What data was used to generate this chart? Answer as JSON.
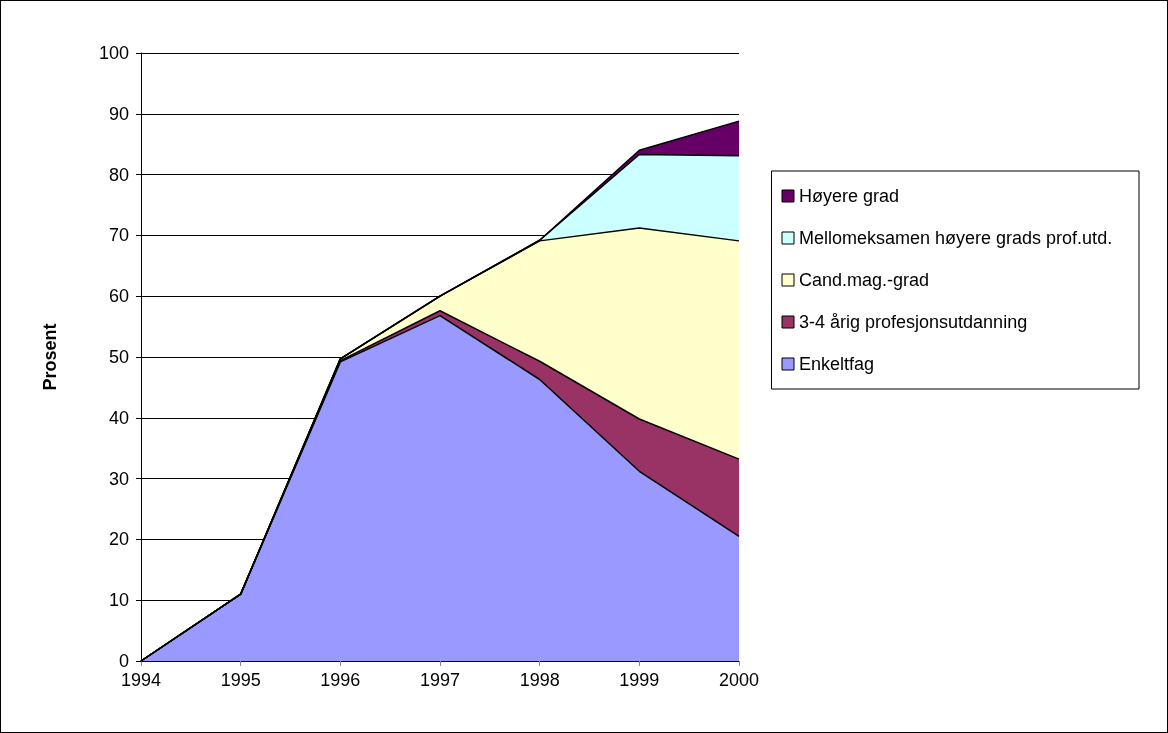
{
  "chart_data": {
    "type": "area",
    "stacked": true,
    "ylabel": "Prosent",
    "categories": [
      "1994",
      "1995",
      "1996",
      "1997",
      "1998",
      "1999",
      "2000"
    ],
    "series": [
      {
        "name": "Enkeltfag",
        "color": "#9999ff",
        "values": [
          0,
          11,
          49.2,
          56.8,
          46.3,
          31.2,
          20.5
        ]
      },
      {
        "name": "3-4 årig profesjonsutdanning",
        "color": "#993366",
        "values": [
          0,
          0,
          0.2,
          0.8,
          3.0,
          8.6,
          12.7
        ]
      },
      {
        "name": "Cand.mag.-grad",
        "color": "#ffffcc",
        "values": [
          0,
          0,
          0.3,
          2.4,
          19.8,
          31.4,
          35.9
        ]
      },
      {
        "name": "Mellomeksamen høyere grads prof.utd.",
        "color": "#ccffff",
        "values": [
          0,
          0,
          0,
          0,
          0.1,
          12.1,
          14.0
        ]
      },
      {
        "name": "Høyere grad",
        "color": "#660066",
        "values": [
          0,
          0,
          0,
          0,
          0,
          0.7,
          5.7
        ]
      }
    ],
    "ylim": [
      0,
      100
    ],
    "yticks": [
      0,
      10,
      20,
      30,
      40,
      50,
      60,
      70,
      80,
      90,
      100
    ],
    "grid": "y",
    "legend": "right",
    "marker": "none"
  }
}
